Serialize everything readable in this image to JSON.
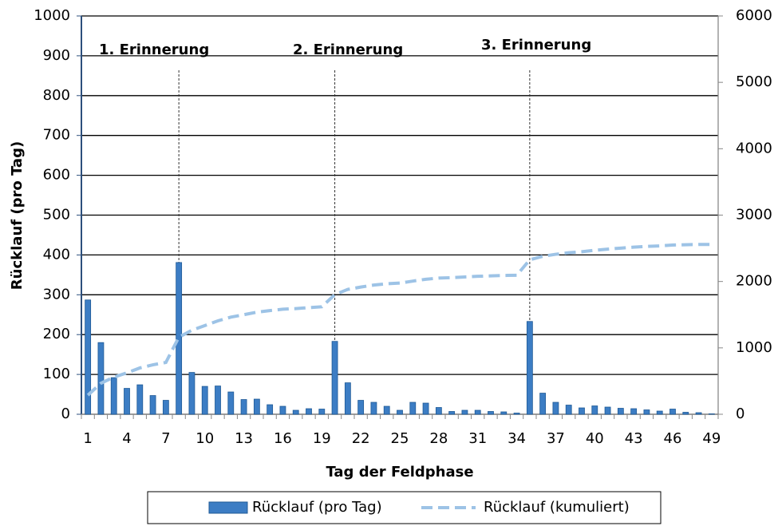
{
  "chart_data": {
    "type": "bar_line",
    "y_label": "Rücklauf (pro Tag)",
    "x_label": "Tag der Feldphase",
    "annotations": [
      "1. Erinnerung",
      "2. Erinnerung",
      "3. Erinnerung"
    ],
    "categories": [
      "1",
      null,
      null,
      "4",
      null,
      null,
      "7",
      null,
      null,
      "10",
      null,
      null,
      "13",
      null,
      null,
      "16",
      null,
      null,
      "19",
      null,
      null,
      "22",
      null,
      null,
      "25",
      null,
      null,
      "28",
      null,
      null,
      "31",
      null,
      null,
      "34",
      null,
      null,
      "37",
      null,
      null,
      "40",
      null,
      null,
      "43",
      null,
      null,
      "46",
      null,
      null,
      "49"
    ],
    "series": [
      {
        "name": "Rücklauf (pro Tag)",
        "type": "bar",
        "color": "#3c7dc4",
        "axis": "y",
        "values": [
          287,
          180,
          92,
          65,
          74,
          47,
          35,
          381,
          105,
          70,
          71,
          56,
          37,
          38,
          24,
          20,
          10,
          14,
          13,
          183,
          79,
          35,
          30,
          20,
          10,
          30,
          28,
          17,
          7,
          10,
          10,
          7,
          6,
          3,
          233,
          53,
          30,
          23,
          16,
          21,
          18,
          15,
          14,
          11,
          8,
          13,
          5,
          4,
          1
        ]
      },
      {
        "name": "Rücklauf (kumuliert)",
        "type": "line",
        "color": "#9dc3e6",
        "axis": "y2",
        "values": [
          287,
          467,
          559,
          624,
          698,
          745,
          780,
          1161,
          1266,
          1336,
          1407,
          1463,
          1500,
          1538,
          1562,
          1582,
          1592,
          1606,
          1619,
          1802,
          1881,
          1916,
          1946,
          1966,
          1976,
          2006,
          2034,
          2051,
          2058,
          2068,
          2078,
          2085,
          2091,
          2094,
          2327,
          2380,
          2410,
          2433,
          2449,
          2470,
          2488,
          2503,
          2517,
          2528,
          2536,
          2549,
          2554,
          2558,
          2559
        ]
      }
    ],
    "ylim": [
      0,
      1000
    ],
    "yticks": [
      0,
      100,
      200,
      300,
      400,
      500,
      600,
      700,
      800,
      900,
      1000
    ],
    "y2lim": [
      0,
      6000
    ],
    "y2ticks": [
      0,
      1000,
      2000,
      3000,
      4000,
      5000,
      6000
    ],
    "grid": true,
    "legend": "bottom"
  }
}
